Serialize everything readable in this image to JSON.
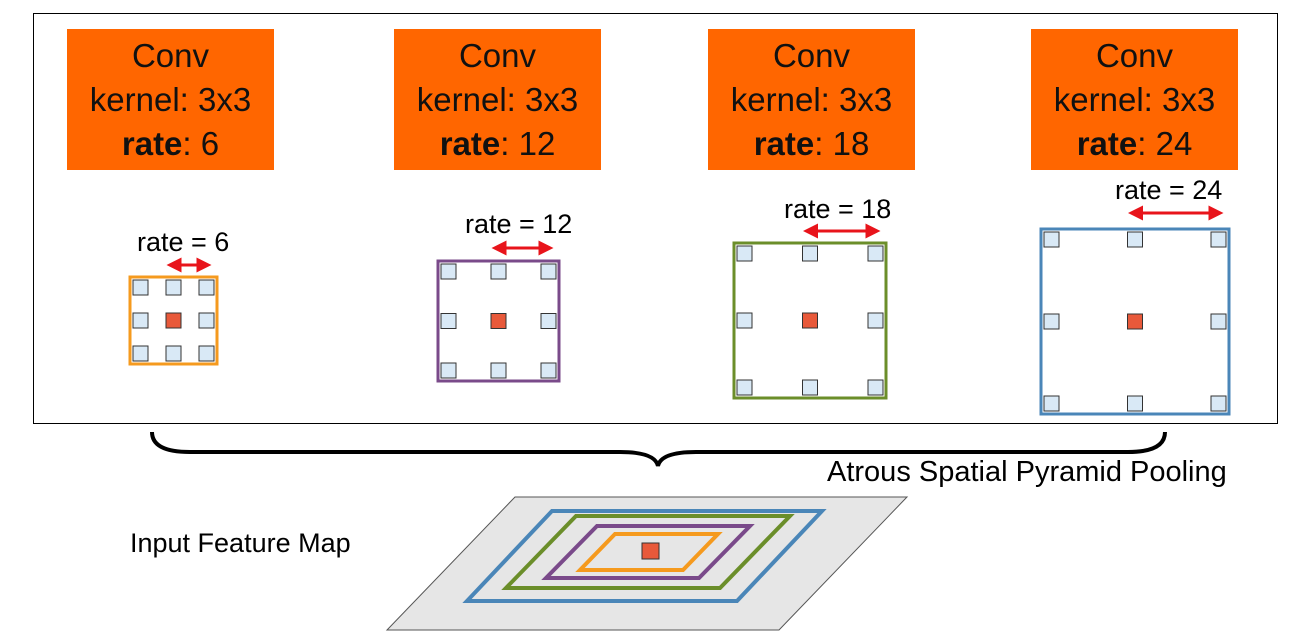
{
  "colors": {
    "conv_box": "#ff6600",
    "arrow": "#e8141b",
    "center_cell": "#e8593a",
    "sample_cell": "#d9e9f6",
    "rate6": "#f59a1e",
    "rate12": "#7a4a8a",
    "rate18": "#6b8e2a",
    "rate24": "#4a86b8",
    "map_fill": "#e6e6e6"
  },
  "conv_blocks": [
    {
      "title": "Conv",
      "kernel": "kernel: 3x3",
      "rate_key": "rate",
      "rate_value": ": 6"
    },
    {
      "title": "Conv",
      "kernel": "kernel: 3x3",
      "rate_key": "rate",
      "rate_value": ": 12"
    },
    {
      "title": "Conv",
      "kernel": "kernel: 3x3",
      "rate_key": "rate",
      "rate_value": ": 18"
    },
    {
      "title": "Conv",
      "kernel": "kernel: 3x3",
      "rate_key": "rate",
      "rate_value": ": 24"
    }
  ],
  "rate_labels": [
    "rate = 6",
    "rate = 12",
    "rate = 18",
    "rate = 24"
  ],
  "aspp_label": "Atrous Spatial Pyramid Pooling",
  "input_label": "Input Feature Map"
}
